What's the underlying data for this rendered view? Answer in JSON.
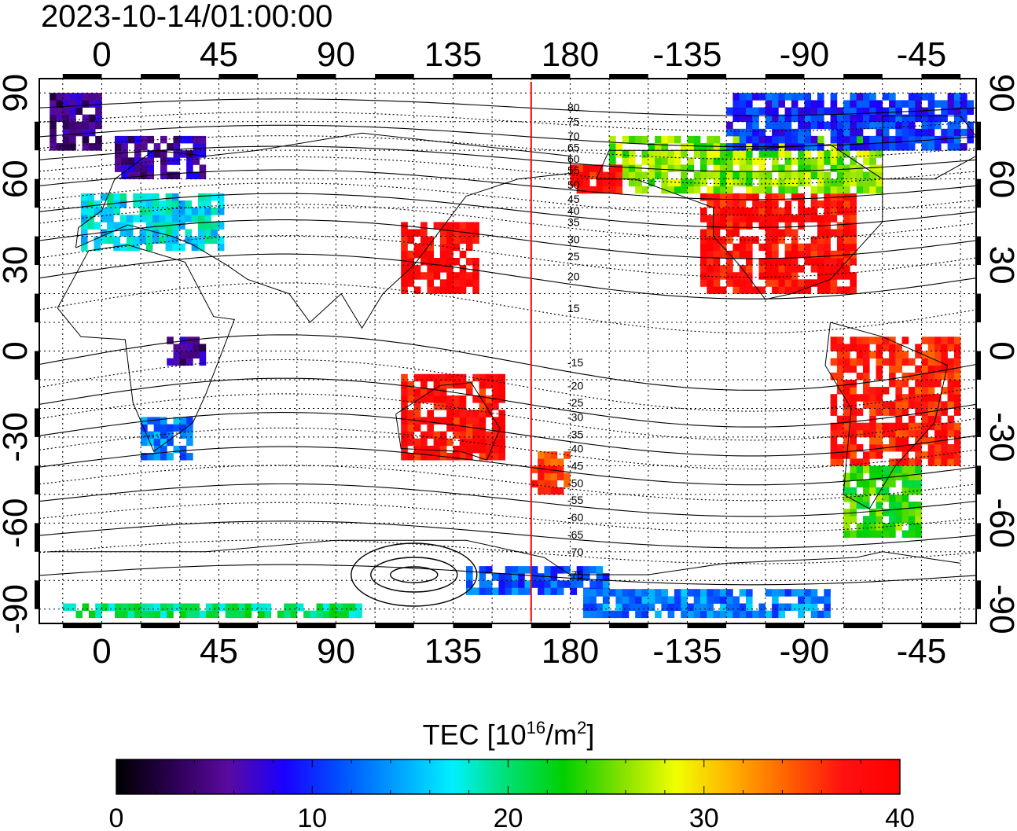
{
  "timestamp": "2023-10-14/01:00:00",
  "map": {
    "lon_ticks_top": [
      "0",
      "45",
      "90",
      "135",
      "180",
      "-135",
      "-90",
      "-45"
    ],
    "lon_ticks_bottom": [
      "0",
      "45",
      "90",
      "135",
      "180",
      "-135",
      "-90",
      "-45"
    ],
    "lat_ticks": [
      "90",
      "60",
      "30",
      "0",
      "-30",
      "-60",
      "-90"
    ],
    "lon_values": [
      0,
      45,
      90,
      135,
      180,
      225,
      270,
      315
    ],
    "lat_values": [
      90,
      60,
      30,
      0,
      -30,
      -60,
      -90
    ],
    "lon_range": [
      -24,
      336
    ],
    "lat_range": [
      -95,
      95
    ],
    "terminator_lon": 165,
    "terminator_color": "#ff0000",
    "magnetic_lat_labels": [
      "80",
      "75",
      "70",
      "65",
      "60",
      "55",
      "50",
      "45",
      "40",
      "35",
      "30",
      "25",
      "20",
      "15",
      "-15",
      "-20",
      "-25",
      "-30",
      "-35",
      "-40",
      "-45",
      "-50",
      "-55",
      "-60",
      "-65",
      "-70",
      "-75"
    ],
    "magnetic_lat_label_lat": [
      85,
      80,
      75,
      71,
      67,
      63,
      58,
      53,
      49,
      45,
      39,
      33,
      26,
      15,
      -4,
      -12,
      -18,
      -23,
      -29,
      -34,
      -40,
      -46,
      -52,
      -58,
      -64,
      -70,
      -78
    ]
  },
  "colorbar": {
    "title_prefix": "TEC  [10",
    "title_exp": "16",
    "title_mid": "/m",
    "title_exp2": "2",
    "title_suffix": "]",
    "tick_labels": [
      "0",
      "10",
      "20",
      "30",
      "40"
    ],
    "min": 0,
    "max": 40,
    "stops": [
      "#000000",
      "#2a0050",
      "#5a0aa0",
      "#1a00ff",
      "#0050ff",
      "#00a0ff",
      "#00f0ff",
      "#00e070",
      "#00d000",
      "#80e000",
      "#f0ff00",
      "#ffb000",
      "#ff6000",
      "#ff1010",
      "#ff0000"
    ]
  },
  "tec_regions": [
    {
      "name": "north-america",
      "lon": [
        230,
        290
      ],
      "lat": [
        20,
        55
      ],
      "tec": 38
    },
    {
      "name": "canada-arc",
      "lon": [
        195,
        300
      ],
      "lat": [
        55,
        75
      ],
      "tec": 26
    },
    {
      "name": "arctic-canada",
      "lon": [
        240,
        335
      ],
      "lat": [
        70,
        88
      ],
      "tec": 10
    },
    {
      "name": "south-america",
      "lon": [
        280,
        330
      ],
      "lat": [
        -40,
        5
      ],
      "tec": 37
    },
    {
      "name": "patagonia",
      "lon": [
        285,
        315
      ],
      "lat": [
        -65,
        -40
      ],
      "tec": 24
    },
    {
      "name": "east-asia",
      "lon": [
        115,
        145
      ],
      "lat": [
        20,
        45
      ],
      "tec": 39
    },
    {
      "name": "europe",
      "lon": [
        -8,
        45
      ],
      "lat": [
        35,
        55
      ],
      "tec": 17
    },
    {
      "name": "scandinavia",
      "lon": [
        5,
        40
      ],
      "lat": [
        60,
        75
      ],
      "tec": 6
    },
    {
      "name": "greenland-west",
      "lon": [
        -20,
        0
      ],
      "lat": [
        70,
        88
      ],
      "tec": 5
    },
    {
      "name": "alaska",
      "lon": [
        180,
        200
      ],
      "lat": [
        55,
        65
      ],
      "tec": 38
    },
    {
      "name": "southern-africa",
      "lon": [
        15,
        35
      ],
      "lat": [
        -38,
        -25
      ],
      "tec": 13
    },
    {
      "name": "new-zealand",
      "lon": [
        165,
        180
      ],
      "lat": [
        -50,
        -35
      ],
      "tec": 36
    },
    {
      "name": "australia",
      "lon": [
        115,
        155
      ],
      "lat": [
        -38,
        -10
      ],
      "tec": 38
    },
    {
      "name": "antarctica-east",
      "lon": [
        140,
        195
      ],
      "lat": [
        -85,
        -75
      ],
      "tec": 12
    },
    {
      "name": "antarctica-south",
      "lon": [
        -15,
        100
      ],
      "lat": [
        -93,
        -88
      ],
      "tec": 20
    },
    {
      "name": "antarctica-pacific",
      "lon": [
        185,
        280
      ],
      "lat": [
        -93,
        -85
      ],
      "tec": 13
    },
    {
      "name": "east-africa",
      "lon": [
        25,
        40
      ],
      "lat": [
        -5,
        5
      ],
      "tec": 5
    }
  ]
}
